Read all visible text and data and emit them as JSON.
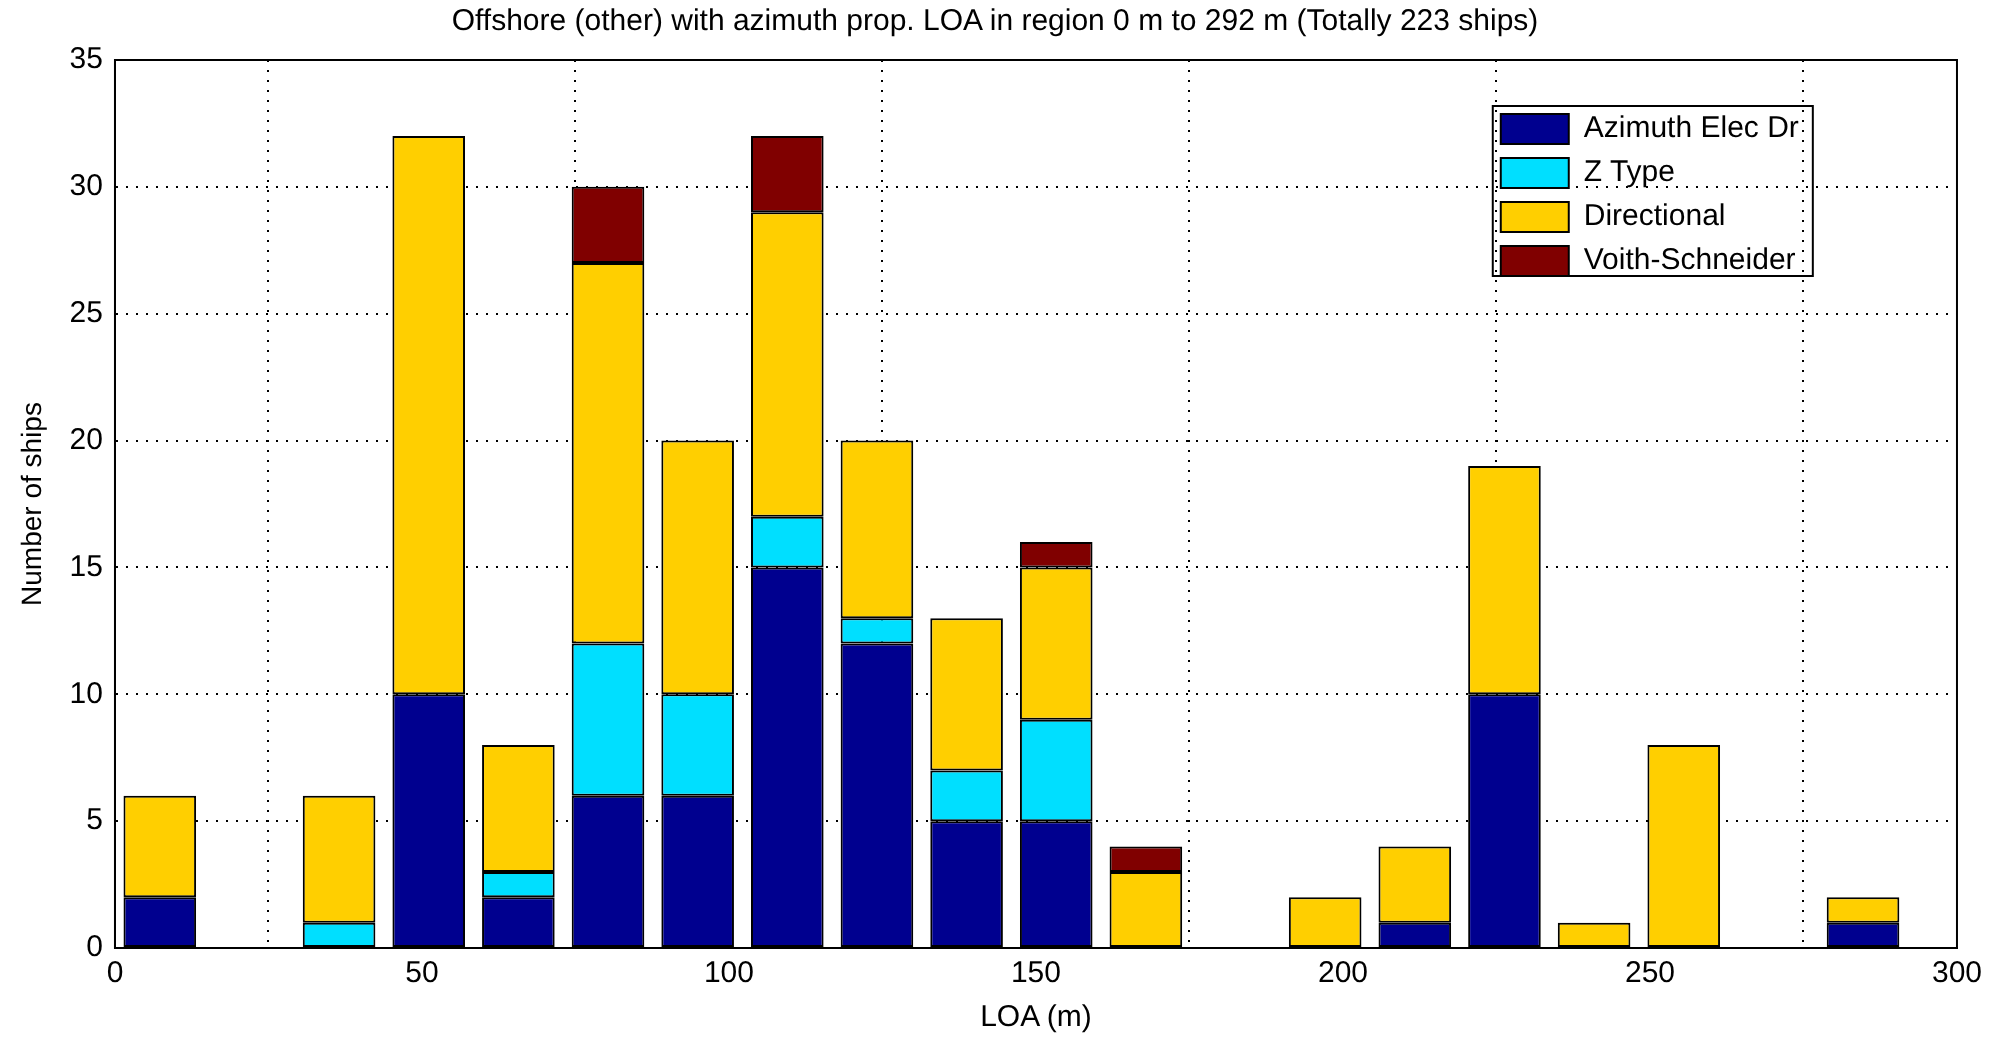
{
  "chart_data": {
    "type": "bar",
    "title": "Offshore (other) with azimuth prop. LOA in region 0 m to 292 m (Totally 223 ships)",
    "xlabel": "LOA (m)",
    "ylabel": "Number of ships",
    "x": [
      7.3,
      36.5,
      51.1,
      65.7,
      80.3,
      94.9,
      109.5,
      124.1,
      138.7,
      153.3,
      167.9,
      197.1,
      211.7,
      226.3,
      240.9,
      255.5,
      284.7
    ],
    "series": [
      {
        "name": "Azimuth Elec Dr",
        "color": "#00008f",
        "values": [
          2,
          0,
          10,
          2,
          6,
          6,
          15,
          12,
          5,
          5,
          0,
          0,
          1,
          10,
          0,
          0,
          1
        ]
      },
      {
        "name": "Z Type",
        "color": "#00dfff",
        "values": [
          0,
          1,
          0,
          1,
          6,
          4,
          2,
          1,
          2,
          4,
          0,
          0,
          0,
          0,
          0,
          0,
          0
        ]
      },
      {
        "name": "Directional",
        "color": "#ffcf00",
        "values": [
          4,
          5,
          22,
          5,
          15,
          10,
          12,
          7,
          6,
          6,
          3,
          2,
          3,
          9,
          1,
          8,
          1
        ]
      },
      {
        "name": "Voith-Schneider",
        "color": "#800000",
        "values": [
          0,
          0,
          0,
          0,
          3,
          0,
          3,
          0,
          0,
          1,
          1,
          0,
          0,
          0,
          0,
          0,
          0
        ]
      }
    ],
    "stacked": true,
    "xlim": [
      0,
      300
    ],
    "xticks": [
      0,
      50,
      100,
      150,
      200,
      250,
      300
    ],
    "ylim": [
      0,
      35
    ],
    "yticks": [
      0,
      5,
      10,
      15,
      20,
      25,
      30,
      35
    ],
    "grid": true,
    "legend": "top right"
  }
}
